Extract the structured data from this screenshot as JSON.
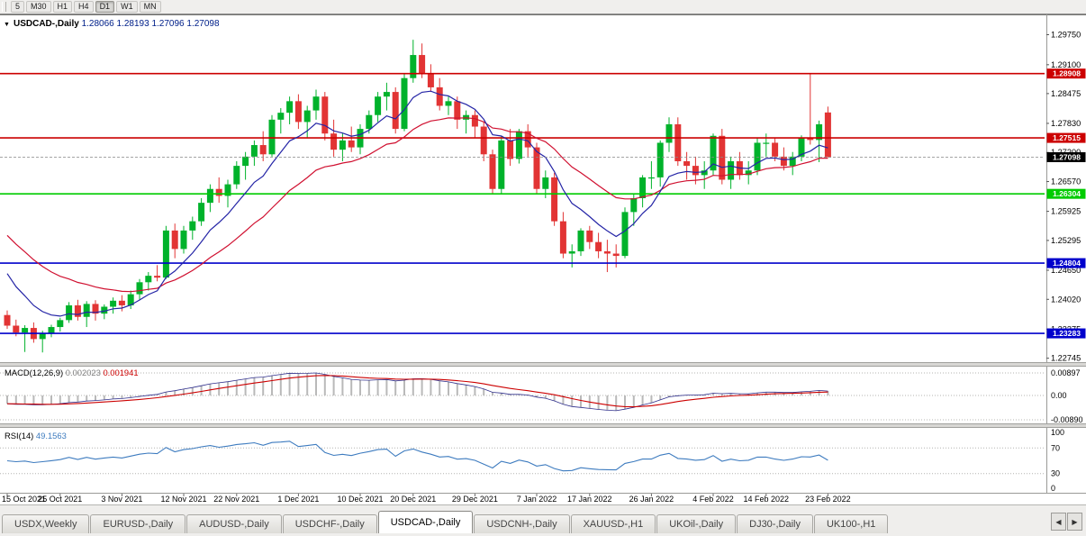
{
  "toolbar": {
    "periods": [
      {
        "label": "5",
        "active": false
      },
      {
        "label": "M30",
        "active": false
      },
      {
        "label": "H1",
        "active": false
      },
      {
        "label": "H4",
        "active": false
      },
      {
        "label": "D1",
        "active": true
      },
      {
        "label": "W1",
        "active": false
      },
      {
        "label": "MN",
        "active": false
      }
    ]
  },
  "chart_header": {
    "collapse_icon": "▼",
    "symbol": "USDCAD-,Daily",
    "open": "1.28066",
    "high": "1.28193",
    "low": "1.27096",
    "close": "1.27098"
  },
  "colors": {
    "bull": "#00b22b",
    "bear": "#e23434",
    "ma_fast": "#2424a6",
    "ma_slow": "#d01030",
    "resistance": "#cc0000",
    "support_green": "#00cc00",
    "support_blue": "#0000cc",
    "current_price_bg": "#000000",
    "histogram": "#b9b9b9",
    "macd_signal": "#cc0000",
    "macd_line": "#30308c",
    "rsi": "#3d7bbf"
  },
  "chart_data": {
    "type": "candlestick",
    "symbol": "USDCAD",
    "timeframe": "Daily",
    "price_range": [
      1.2266,
      1.3015
    ],
    "y_axis_labels": [
      "1.29750",
      "1.29100",
      "1.28475",
      "1.27830",
      "1.27200",
      "1.26570",
      "1.25925",
      "1.25295",
      "1.24650",
      "1.24020",
      "1.23375",
      "1.22745"
    ],
    "x_axis_ticks": [
      {
        "index": 0,
        "label": "15 Oct 2021"
      },
      {
        "index": 6,
        "label": "25 Oct 2021"
      },
      {
        "index": 13,
        "label": "3 Nov 2021"
      },
      {
        "index": 20,
        "label": "12 Nov 2021"
      },
      {
        "index": 26,
        "label": "22 Nov 2021"
      },
      {
        "index": 33,
        "label": "1 Dec 2021"
      },
      {
        "index": 40,
        "label": "10 Dec 2021"
      },
      {
        "index": 46,
        "label": "20 Dec 2021"
      },
      {
        "index": 53,
        "label": "29 Dec 2021"
      },
      {
        "index": 60,
        "label": "7 Jan 2022"
      },
      {
        "index": 66,
        "label": "17 Jan 2022"
      },
      {
        "index": 73,
        "label": "26 Jan 2022"
      },
      {
        "index": 80,
        "label": "4 Feb 2022"
      },
      {
        "index": 86,
        "label": "14 Feb 2022"
      },
      {
        "index": 93,
        "label": "23 Feb 2022"
      }
    ],
    "candles": [
      [
        1.2368,
        1.2378,
        1.2338,
        1.2345
      ],
      [
        1.2345,
        1.2358,
        1.2322,
        1.233
      ],
      [
        1.233,
        1.2346,
        1.2288,
        1.234
      ],
      [
        1.234,
        1.2352,
        1.2308,
        1.2316
      ],
      [
        1.2316,
        1.2334,
        1.2287,
        1.2329
      ],
      [
        1.2329,
        1.2347,
        1.232,
        1.2342
      ],
      [
        1.2342,
        1.2362,
        1.2332,
        1.2357
      ],
      [
        1.2357,
        1.2396,
        1.2351,
        1.2389
      ],
      [
        1.2389,
        1.2401,
        1.2356,
        1.2364
      ],
      [
        1.2364,
        1.2398,
        1.2342,
        1.2392
      ],
      [
        1.2392,
        1.24,
        1.2356,
        1.2371
      ],
      [
        1.2371,
        1.2391,
        1.2359,
        1.2386
      ],
      [
        1.2386,
        1.2406,
        1.2371,
        1.2399
      ],
      [
        1.2399,
        1.2411,
        1.2376,
        1.2389
      ],
      [
        1.2389,
        1.2421,
        1.2381,
        1.2413
      ],
      [
        1.2413,
        1.2446,
        1.2401,
        1.2439
      ],
      [
        1.2439,
        1.2461,
        1.2421,
        1.2453
      ],
      [
        1.2453,
        1.2476,
        1.2441,
        1.2449
      ],
      [
        1.2449,
        1.2561,
        1.2446,
        1.2551
      ],
      [
        1.2551,
        1.2566,
        1.2491,
        1.2511
      ],
      [
        1.2511,
        1.2561,
        1.2501,
        1.2551
      ],
      [
        1.2551,
        1.2581,
        1.2531,
        1.2571
      ],
      [
        1.2571,
        1.2621,
        1.2561,
        1.2611
      ],
      [
        1.2611,
        1.2651,
        1.2591,
        1.2641
      ],
      [
        1.2641,
        1.2666,
        1.2611,
        1.2626
      ],
      [
        1.2626,
        1.2661,
        1.2601,
        1.2651
      ],
      [
        1.2651,
        1.2701,
        1.2641,
        1.2691
      ],
      [
        1.2691,
        1.2721,
        1.2661,
        1.2711
      ],
      [
        1.2711,
        1.2746,
        1.2691,
        1.2736
      ],
      [
        1.2736,
        1.2766,
        1.2701,
        1.2716
      ],
      [
        1.2716,
        1.2801,
        1.2711,
        1.2791
      ],
      [
        1.2791,
        1.2816,
        1.2761,
        1.2806
      ],
      [
        1.2806,
        1.2841,
        1.2781,
        1.2831
      ],
      [
        1.2831,
        1.2846,
        1.2771,
        1.2786
      ],
      [
        1.2786,
        1.2821,
        1.2751,
        1.2811
      ],
      [
        1.2811,
        1.2856,
        1.2791,
        1.2841
      ],
      [
        1.2841,
        1.2851,
        1.2746,
        1.2761
      ],
      [
        1.2761,
        1.2791,
        1.2711,
        1.2726
      ],
      [
        1.2726,
        1.2761,
        1.2701,
        1.2746
      ],
      [
        1.2746,
        1.2776,
        1.2721,
        1.2731
      ],
      [
        1.2731,
        1.2781,
        1.2716,
        1.2771
      ],
      [
        1.2771,
        1.2811,
        1.2761,
        1.2801
      ],
      [
        1.2801,
        1.2851,
        1.2786,
        1.2841
      ],
      [
        1.2841,
        1.2871,
        1.2811,
        1.2851
      ],
      [
        1.2851,
        1.2861,
        1.2761,
        1.2771
      ],
      [
        1.2771,
        1.2891,
        1.2766,
        1.2881
      ],
      [
        1.2881,
        1.2964,
        1.2871,
        1.2931
      ],
      [
        1.2931,
        1.2956,
        1.2881,
        1.2891
      ],
      [
        1.2891,
        1.2911,
        1.2851,
        1.2861
      ],
      [
        1.2861,
        1.2881,
        1.2811,
        1.2821
      ],
      [
        1.2821,
        1.2841,
        1.2801,
        1.2831
      ],
      [
        1.2831,
        1.2841,
        1.2771,
        1.2791
      ],
      [
        1.2791,
        1.2811,
        1.2761,
        1.2801
      ],
      [
        1.2801,
        1.2811,
        1.2751,
        1.2776
      ],
      [
        1.2776,
        1.2786,
        1.2701,
        1.2716
      ],
      [
        1.2716,
        1.2726,
        1.2631,
        1.2641
      ],
      [
        1.2641,
        1.2756,
        1.2631,
        1.2746
      ],
      [
        1.2746,
        1.2771,
        1.2691,
        1.2706
      ],
      [
        1.2706,
        1.2771,
        1.2696,
        1.2766
      ],
      [
        1.2766,
        1.2781,
        1.2711,
        1.2731
      ],
      [
        1.2731,
        1.2741,
        1.2631,
        1.2641
      ],
      [
        1.2641,
        1.2681,
        1.2621,
        1.2666
      ],
      [
        1.2666,
        1.2676,
        1.2561,
        1.2571
      ],
      [
        1.2571,
        1.2591,
        1.2491,
        1.2501
      ],
      [
        1.2501,
        1.2521,
        1.2471,
        1.2506
      ],
      [
        1.2506,
        1.2556,
        1.2496,
        1.2551
      ],
      [
        1.2551,
        1.2561,
        1.2511,
        1.2526
      ],
      [
        1.2526,
        1.2546,
        1.2491,
        1.2506
      ],
      [
        1.2506,
        1.2531,
        1.2461,
        1.2501
      ],
      [
        1.2501,
        1.2521,
        1.2471,
        1.2496
      ],
      [
        1.2496,
        1.2601,
        1.2491,
        1.2591
      ],
      [
        1.2591,
        1.2631,
        1.2561,
        1.2621
      ],
      [
        1.2621,
        1.2671,
        1.2601,
        1.2666
      ],
      [
        1.2666,
        1.2701,
        1.2641,
        1.2666
      ],
      [
        1.2666,
        1.2746,
        1.2646,
        1.2741
      ],
      [
        1.2741,
        1.2796,
        1.2721,
        1.2781
      ],
      [
        1.2781,
        1.2796,
        1.2691,
        1.2701
      ],
      [
        1.2701,
        1.2721,
        1.2661,
        1.2691
      ],
      [
        1.2691,
        1.2711,
        1.2651,
        1.2671
      ],
      [
        1.2671,
        1.2701,
        1.2641,
        1.2681
      ],
      [
        1.2681,
        1.2761,
        1.2671,
        1.2756
      ],
      [
        1.2756,
        1.2771,
        1.2651,
        1.2661
      ],
      [
        1.2661,
        1.2711,
        1.2641,
        1.2701
      ],
      [
        1.2701,
        1.2721,
        1.2661,
        1.2671
      ],
      [
        1.2671,
        1.2701,
        1.2651,
        1.2681
      ],
      [
        1.2681,
        1.2751,
        1.2671,
        1.2741
      ],
      [
        1.2741,
        1.2761,
        1.2711,
        1.2741
      ],
      [
        1.2741,
        1.2751,
        1.2701,
        1.2711
      ],
      [
        1.2711,
        1.2731,
        1.2681,
        1.2691
      ],
      [
        1.2691,
        1.2721,
        1.2671,
        1.2711
      ],
      [
        1.2711,
        1.2757,
        1.2701,
        1.2751
      ],
      [
        1.2751,
        1.2892,
        1.2737,
        1.2747
      ],
      [
        1.2747,
        1.2789,
        1.2699,
        1.2781
      ],
      [
        1.28066,
        1.28193,
        1.27096,
        1.27098
      ]
    ],
    "price_lines": [
      {
        "price": 1.28908,
        "label": "1.28908",
        "type": "resistance",
        "color": "#cc0000"
      },
      {
        "price": 1.27515,
        "label": "1.27515",
        "type": "resistance",
        "color": "#cc0000"
      },
      {
        "price": 1.26304,
        "label": "1.26304",
        "type": "support",
        "color": "#00cc00"
      },
      {
        "price": 1.24804,
        "label": "1.24804",
        "type": "support",
        "color": "#0000cc"
      },
      {
        "price": 1.23283,
        "label": "1.23283",
        "type": "support",
        "color": "#0000cc"
      }
    ],
    "current_price": {
      "price": 1.27098,
      "label": "1.27098"
    }
  },
  "indicators": {
    "macd": {
      "name": "MACD(12,26,9)",
      "value_main": "0.002023",
      "value_signal": "0.001941",
      "scale": [
        "0.00897",
        "0.00",
        "-0.00890"
      ]
    },
    "rsi": {
      "name": "RSI(14)",
      "value": "49.1563",
      "scale": [
        "100",
        "70",
        "30",
        "0"
      ],
      "levels": [
        70,
        30
      ]
    }
  },
  "tabs": {
    "items": [
      {
        "label": "USDX,Weekly",
        "active": false
      },
      {
        "label": "EURUSD-,Daily",
        "active": false
      },
      {
        "label": "AUDUSD-,Daily",
        "active": false
      },
      {
        "label": "USDCHF-,Daily",
        "active": false
      },
      {
        "label": "USDCAD-,Daily",
        "active": true
      },
      {
        "label": "USDCNH-,Daily",
        "active": false
      },
      {
        "label": "XAUUSD-,H1",
        "active": false
      },
      {
        "label": "UKOil-,Daily",
        "active": false
      },
      {
        "label": "DJ30-,Daily",
        "active": false
      },
      {
        "label": "UK100-,H1",
        "active": false
      }
    ],
    "scroll_left": "◀",
    "scroll_right": "▶"
  }
}
